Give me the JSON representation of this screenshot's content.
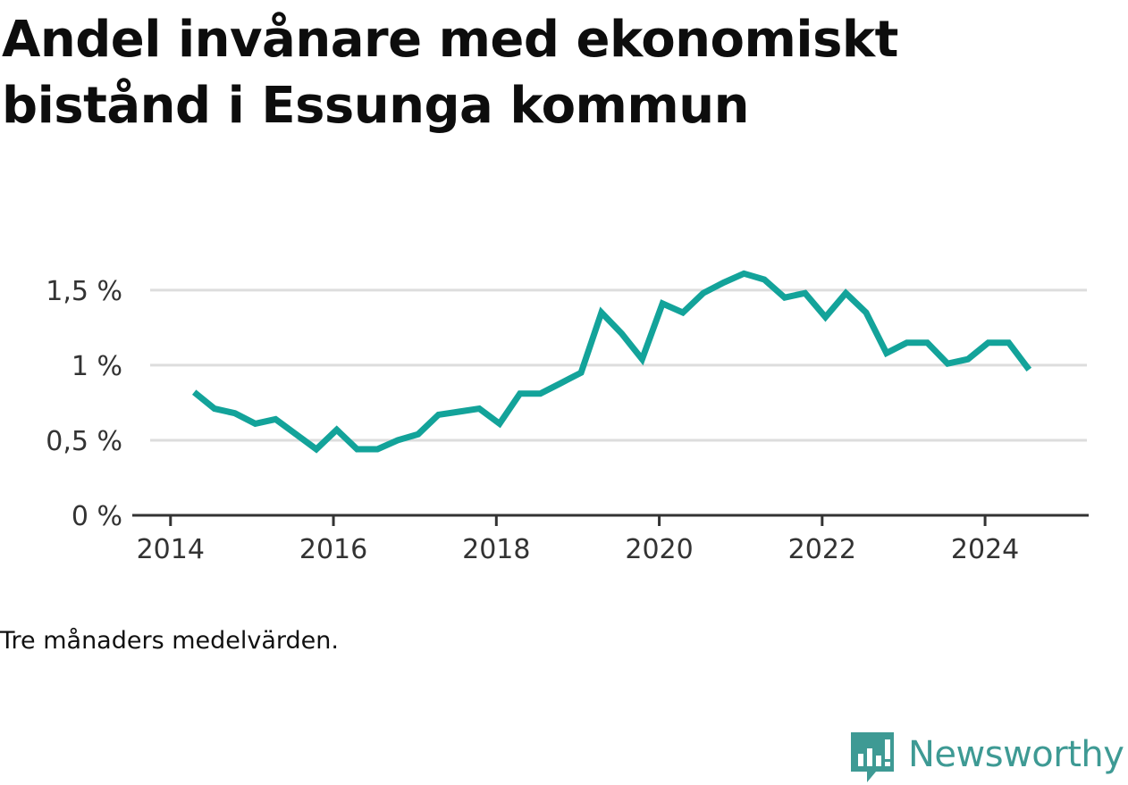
{
  "title": "Andel invånare med ekonomiskt bistånd i Essunga kommun",
  "note": "Tre månaders medelvärden.",
  "brand": {
    "name": "Newsworthy",
    "icon": "newsworthy-logo-icon",
    "color": "#3e9a94"
  },
  "colors": {
    "line": "#13a39a",
    "grid": "#dddddd",
    "axis": "#333333"
  },
  "chart_data": {
    "type": "line",
    "title": "Andel invånare med ekonomiskt bistånd i Essunga kommun",
    "xlabel": "",
    "ylabel": "",
    "xlim": [
      2013.75,
      2025.25
    ],
    "ylim": [
      0,
      1.6
    ],
    "x_ticks": [
      {
        "value": 2014,
        "label": "2014"
      },
      {
        "value": 2016,
        "label": "2016"
      },
      {
        "value": 2018,
        "label": "2018"
      },
      {
        "value": 2020,
        "label": "2020"
      },
      {
        "value": 2022,
        "label": "2022"
      },
      {
        "value": 2024,
        "label": "2024"
      }
    ],
    "y_ticks": [
      {
        "value": 0,
        "label": "0 %"
      },
      {
        "value": 0.5,
        "label": "0,5 %"
      },
      {
        "value": 1,
        "label": "1 %"
      },
      {
        "value": 1.5,
        "label": "1,5 %"
      }
    ],
    "grid": true,
    "legend": "none",
    "series": [
      {
        "x": [
          2014.29,
          2014.54,
          2014.79,
          2015.04,
          2015.29,
          2015.54,
          2015.79,
          2016.04,
          2016.29,
          2016.54,
          2016.79,
          2017.04,
          2017.29,
          2017.54,
          2017.79,
          2018.04,
          2018.29,
          2018.54,
          2018.79,
          2019.04,
          2019.29,
          2019.54,
          2019.79,
          2020.04,
          2020.29,
          2020.54,
          2020.79,
          2021.04,
          2021.29,
          2021.54,
          2021.79,
          2022.04,
          2022.29,
          2022.54,
          2022.79,
          2023.04,
          2023.29,
          2023.54,
          2023.79,
          2024.04,
          2024.29,
          2024.54
        ],
        "y": [
          0.82,
          0.71,
          0.68,
          0.61,
          0.64,
          0.54,
          0.44,
          0.57,
          0.44,
          0.44,
          0.5,
          0.54,
          0.67,
          0.69,
          0.71,
          0.61,
          0.81,
          0.81,
          0.88,
          0.95,
          1.35,
          1.21,
          1.04,
          1.41,
          1.35,
          1.48,
          1.55,
          1.61,
          1.57,
          1.45,
          1.48,
          1.32,
          1.48,
          1.35,
          1.08,
          1.15,
          1.15,
          1.01,
          1.04,
          1.15,
          1.15,
          0.97
        ]
      }
    ]
  }
}
